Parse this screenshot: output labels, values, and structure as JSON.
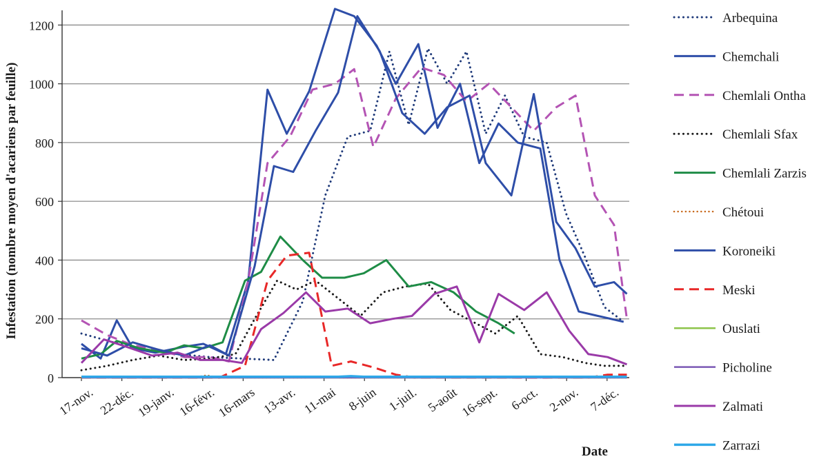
{
  "chart_data": {
    "type": "line",
    "ylabel": "Infestation (nombre moyen d'acariens par feuille)",
    "xlabel": "Date",
    "ylim": [
      0,
      1250
    ],
    "yticks": [
      0,
      200,
      400,
      600,
      800,
      1000,
      1200
    ],
    "x_tick_labels": [
      "17-nov.",
      "22-déc.",
      "19-janv.",
      "16-févr.",
      "16-mars",
      "13-avr.",
      "11-mai",
      "8-juin",
      "1-juil.",
      "5-août",
      "16-sept.",
      "6-oct.",
      "2-nov.",
      "7-déc."
    ],
    "grid": "horizontal",
    "legend_position": "right",
    "series": [
      {
        "name": "Arbequina",
        "color": "#1f3a7a",
        "dash": "dot",
        "width": 3,
        "points": [
          [
            0,
            150
          ],
          [
            1,
            120
          ],
          [
            2,
            95
          ],
          [
            3,
            80
          ],
          [
            4,
            70
          ],
          [
            5,
            65
          ],
          [
            6,
            60
          ],
          [
            6.9,
            260
          ],
          [
            7.6,
            620
          ],
          [
            8.3,
            820
          ],
          [
            9.0,
            840
          ],
          [
            9.6,
            1110
          ],
          [
            10.2,
            860
          ],
          [
            10.8,
            1120
          ],
          [
            11.4,
            1000
          ],
          [
            12.0,
            1110
          ],
          [
            12.6,
            830
          ],
          [
            13.2,
            960
          ],
          [
            13.8,
            820
          ],
          [
            14.5,
            800
          ],
          [
            15.1,
            560
          ],
          [
            15.7,
            410
          ],
          [
            16.3,
            240
          ],
          [
            16.9,
            190
          ]
        ]
      },
      {
        "name": "Chemchali",
        "color": "#2e4ea8",
        "dash": "solid",
        "width": 3,
        "points": [
          [
            0,
            115
          ],
          [
            0.6,
            65
          ],
          [
            1.1,
            195
          ],
          [
            1.6,
            100
          ],
          [
            2.3,
            85
          ],
          [
            3.2,
            105
          ],
          [
            3.8,
            115
          ],
          [
            4.5,
            80
          ],
          [
            5.2,
            330
          ],
          [
            5.8,
            980
          ],
          [
            6.4,
            830
          ],
          [
            7.1,
            975
          ],
          [
            7.9,
            1255
          ],
          [
            8.5,
            1230
          ],
          [
            9.2,
            1130
          ],
          [
            9.8,
            1000
          ],
          [
            10.5,
            1135
          ],
          [
            11.1,
            850
          ],
          [
            11.8,
            1000
          ],
          [
            12.4,
            730
          ],
          [
            13.0,
            865
          ],
          [
            13.6,
            800
          ],
          [
            14.3,
            780
          ],
          [
            14.9,
            400
          ],
          [
            15.5,
            225
          ],
          [
            16.1,
            210
          ],
          [
            16.9,
            190
          ]
        ]
      },
      {
        "name": "Chemlali Ontha",
        "color": "#b454b4",
        "dash": "dash",
        "width": 3,
        "points": [
          [
            0,
            195
          ],
          [
            0.8,
            145
          ],
          [
            1.6,
            110
          ],
          [
            2.4,
            95
          ],
          [
            3.2,
            70
          ],
          [
            4.0,
            70
          ],
          [
            4.6,
            55
          ],
          [
            5.2,
            330
          ],
          [
            5.8,
            730
          ],
          [
            6.5,
            820
          ],
          [
            7.2,
            980
          ],
          [
            7.9,
            1000
          ],
          [
            8.5,
            1050
          ],
          [
            9.1,
            785
          ],
          [
            9.8,
            950
          ],
          [
            10.6,
            1055
          ],
          [
            11.3,
            1030
          ],
          [
            12.0,
            940
          ],
          [
            12.7,
            1000
          ],
          [
            13.4,
            920
          ],
          [
            14.1,
            840
          ],
          [
            14.8,
            920
          ],
          [
            15.4,
            960
          ],
          [
            16.0,
            620
          ],
          [
            16.6,
            520
          ],
          [
            17.0,
            200
          ]
        ]
      },
      {
        "name": "Chemlali Sfax",
        "color": "#1a1a1a",
        "dash": "dot",
        "width": 3,
        "points": [
          [
            0,
            25
          ],
          [
            0.8,
            40
          ],
          [
            1.6,
            60
          ],
          [
            2.4,
            75
          ],
          [
            3.2,
            60
          ],
          [
            4.0,
            65
          ],
          [
            4.8,
            80
          ],
          [
            5.4,
            200
          ],
          [
            6.1,
            330
          ],
          [
            6.7,
            300
          ],
          [
            7.3,
            330
          ],
          [
            8.0,
            270
          ],
          [
            8.7,
            210
          ],
          [
            9.4,
            290
          ],
          [
            10.1,
            310
          ],
          [
            10.8,
            320
          ],
          [
            11.5,
            230
          ],
          [
            12.2,
            190
          ],
          [
            12.9,
            150
          ],
          [
            13.6,
            210
          ],
          [
            14.3,
            80
          ],
          [
            15.0,
            70
          ],
          [
            15.7,
            50
          ],
          [
            16.3,
            40
          ],
          [
            17.0,
            40
          ]
        ]
      },
      {
        "name": "Chemlali Zarzis",
        "color": "#1e8c46",
        "dash": "solid",
        "width": 3,
        "points": [
          [
            0,
            65
          ],
          [
            0.6,
            80
          ],
          [
            1.1,
            125
          ],
          [
            1.8,
            100
          ],
          [
            2.6,
            85
          ],
          [
            3.2,
            110
          ],
          [
            3.8,
            100
          ],
          [
            4.4,
            120
          ],
          [
            5.1,
            330
          ],
          [
            5.6,
            360
          ],
          [
            6.2,
            480
          ],
          [
            6.9,
            400
          ],
          [
            7.5,
            340
          ],
          [
            8.2,
            340
          ],
          [
            8.8,
            355
          ],
          [
            9.5,
            400
          ],
          [
            10.2,
            310
          ],
          [
            10.9,
            325
          ],
          [
            11.6,
            290
          ],
          [
            12.3,
            225
          ],
          [
            13.0,
            185
          ],
          [
            13.5,
            150
          ]
        ]
      },
      {
        "name": "Chétoui",
        "color": "#c86a1e",
        "dash": "dot",
        "width": 2.5,
        "points": [
          [
            0,
            0
          ],
          [
            3.5,
            0
          ],
          [
            3.9,
            8
          ],
          [
            4.3,
            0
          ],
          [
            7.0,
            0
          ],
          [
            7.5,
            5
          ],
          [
            8.0,
            0
          ],
          [
            17.0,
            0
          ]
        ]
      },
      {
        "name": "Koroneiki",
        "color": "#2e4ea8",
        "dash": "solid",
        "width": 3,
        "points": [
          [
            0,
            100
          ],
          [
            0.8,
            75
          ],
          [
            1.6,
            120
          ],
          [
            2.4,
            95
          ],
          [
            3.2,
            75
          ],
          [
            4.0,
            110
          ],
          [
            4.6,
            75
          ],
          [
            5.4,
            380
          ],
          [
            6.0,
            720
          ],
          [
            6.6,
            700
          ],
          [
            7.3,
            840
          ],
          [
            8.0,
            970
          ],
          [
            8.6,
            1230
          ],
          [
            9.3,
            1110
          ],
          [
            10.0,
            900
          ],
          [
            10.7,
            830
          ],
          [
            11.4,
            920
          ],
          [
            12.1,
            960
          ],
          [
            12.6,
            730
          ],
          [
            13.4,
            620
          ],
          [
            14.1,
            965
          ],
          [
            14.8,
            530
          ],
          [
            15.4,
            440
          ],
          [
            16.0,
            310
          ],
          [
            16.6,
            325
          ],
          [
            17.0,
            285
          ]
        ]
      },
      {
        "name": "Meski",
        "color": "#e82828",
        "dash": "dash",
        "width": 3,
        "points": [
          [
            0,
            0
          ],
          [
            4.3,
            0
          ],
          [
            5.1,
            40
          ],
          [
            5.8,
            330
          ],
          [
            6.4,
            415
          ],
          [
            7.1,
            425
          ],
          [
            7.8,
            40
          ],
          [
            8.4,
            55
          ],
          [
            9.1,
            35
          ],
          [
            9.8,
            10
          ],
          [
            10.4,
            0
          ],
          [
            15.8,
            0
          ],
          [
            16.4,
            10
          ],
          [
            17.0,
            10
          ]
        ]
      },
      {
        "name": "Ouslati",
        "color": "#8cc44a",
        "dash": "solid",
        "width": 2.5,
        "points": [
          [
            0,
            0
          ],
          [
            13.5,
            0
          ],
          [
            14.0,
            4
          ],
          [
            14.6,
            0
          ],
          [
            17.0,
            0
          ]
        ]
      },
      {
        "name": "Picholine",
        "color": "#7a58b4",
        "dash": "solid",
        "width": 2.5,
        "points": [
          [
            0,
            0
          ],
          [
            17.0,
            0
          ]
        ]
      },
      {
        "name": "Zalmati",
        "color": "#9a3aa8",
        "dash": "solid",
        "width": 3,
        "points": [
          [
            0,
            50
          ],
          [
            0.7,
            130
          ],
          [
            1.4,
            105
          ],
          [
            2.2,
            75
          ],
          [
            3.0,
            85
          ],
          [
            3.7,
            60
          ],
          [
            4.4,
            60
          ],
          [
            5.0,
            50
          ],
          [
            5.6,
            165
          ],
          [
            6.3,
            220
          ],
          [
            7.0,
            290
          ],
          [
            7.6,
            225
          ],
          [
            8.3,
            235
          ],
          [
            9.0,
            185
          ],
          [
            9.7,
            200
          ],
          [
            10.3,
            210
          ],
          [
            11.0,
            285
          ],
          [
            11.7,
            310
          ],
          [
            12.4,
            120
          ],
          [
            13.0,
            285
          ],
          [
            13.8,
            230
          ],
          [
            14.5,
            290
          ],
          [
            15.2,
            160
          ],
          [
            15.8,
            80
          ],
          [
            16.4,
            70
          ],
          [
            17.0,
            45
          ]
        ]
      },
      {
        "name": "Zarrazi",
        "color": "#2ea8e8",
        "dash": "solid",
        "width": 3.5,
        "points": [
          [
            0,
            3
          ],
          [
            8.0,
            3
          ],
          [
            8.4,
            5
          ],
          [
            8.8,
            3
          ],
          [
            17.0,
            3
          ]
        ]
      }
    ]
  }
}
